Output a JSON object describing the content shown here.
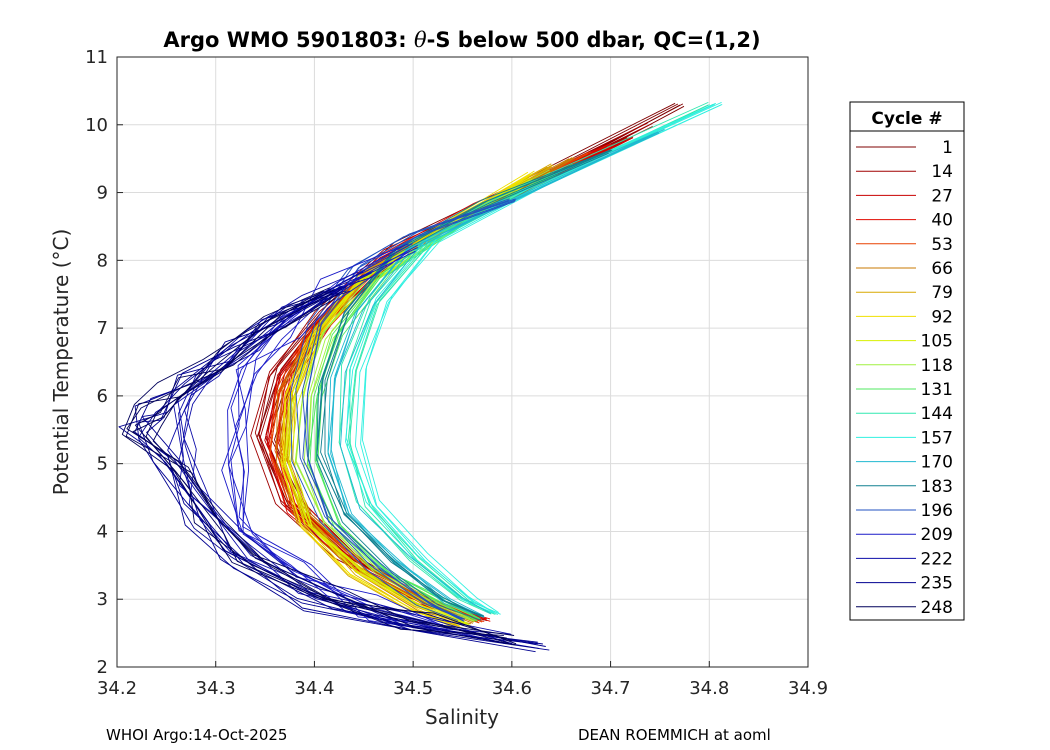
{
  "chart_data": {
    "type": "line",
    "title_prefix": "Argo WMO 5901803: ",
    "title_symbol": "θ",
    "title_suffix": "-S below 500 dbar,  QC=(1,2)",
    "xlabel": "Salinity",
    "ylabel": "Potential Temperature (°C)",
    "xlim": [
      34.2,
      34.9
    ],
    "ylim": [
      2,
      11
    ],
    "xticks": [
      "34.2",
      "34.3",
      "34.4",
      "34.5",
      "34.6",
      "34.7",
      "34.8",
      "34.9"
    ],
    "yticks": [
      "2",
      "3",
      "4",
      "5",
      "6",
      "7",
      "8",
      "9",
      "10",
      "11"
    ],
    "grid": true,
    "legend": {
      "title": "Cycle #",
      "placement": "outside-right",
      "entries": [
        {
          "label": "1",
          "color": "#7f0000"
        },
        {
          "label": "14",
          "color": "#a00000"
        },
        {
          "label": "27",
          "color": "#c80000"
        },
        {
          "label": "40",
          "color": "#e00a00"
        },
        {
          "label": "53",
          "color": "#e84000"
        },
        {
          "label": "66",
          "color": "#c87800"
        },
        {
          "label": "79",
          "color": "#d8a800"
        },
        {
          "label": "92",
          "color": "#f0e000"
        },
        {
          "label": "105",
          "color": "#d8f000"
        },
        {
          "label": "118",
          "color": "#a0f040"
        },
        {
          "label": "131",
          "color": "#50e860"
        },
        {
          "label": "144",
          "color": "#30e8b0"
        },
        {
          "label": "157",
          "color": "#30f0e0"
        },
        {
          "label": "170",
          "color": "#20b8d0"
        },
        {
          "label": "183",
          "color": "#108090"
        },
        {
          "label": "196",
          "color": "#2050c0"
        },
        {
          "label": "209",
          "color": "#1a1ac8"
        },
        {
          "label": "222",
          "color": "#0c0ca8"
        },
        {
          "label": "235",
          "color": "#000090"
        },
        {
          "label": "248",
          "color": "#00005a"
        }
      ]
    },
    "series": [
      {
        "name": "1",
        "color": "#7f0000",
        "x": [
          34.77,
          34.6,
          34.49,
          34.42,
          34.37,
          34.35,
          34.38,
          34.44,
          34.51,
          34.57
        ],
        "y": [
          10.3,
          9.0,
          8.2,
          7.3,
          6.4,
          5.4,
          4.4,
          3.6,
          3.0,
          2.7
        ]
      },
      {
        "name": "14",
        "color": "#a00000",
        "x": [
          34.74,
          34.59,
          34.48,
          34.41,
          34.36,
          34.345,
          34.37,
          34.43,
          34.5,
          34.565
        ],
        "y": [
          10.0,
          8.9,
          8.1,
          7.2,
          6.3,
          5.4,
          4.4,
          3.6,
          3.0,
          2.68
        ]
      },
      {
        "name": "27",
        "color": "#c80000",
        "x": [
          34.72,
          34.58,
          34.47,
          34.41,
          34.37,
          34.355,
          34.38,
          34.44,
          34.51,
          34.57
        ],
        "y": [
          9.8,
          8.8,
          8.0,
          7.1,
          6.3,
          5.3,
          4.4,
          3.5,
          3.0,
          2.7
        ]
      },
      {
        "name": "40",
        "color": "#e00a00",
        "x": [
          34.7,
          34.57,
          34.47,
          34.41,
          34.37,
          34.36,
          34.38,
          34.45,
          34.52,
          34.575
        ],
        "y": [
          9.7,
          8.8,
          8.0,
          7.1,
          6.2,
          5.2,
          4.3,
          3.5,
          2.95,
          2.7
        ]
      },
      {
        "name": "53",
        "color": "#e84000",
        "x": [
          34.68,
          34.56,
          34.46,
          34.4,
          34.37,
          34.36,
          34.385,
          34.45,
          34.52,
          34.57
        ],
        "y": [
          9.6,
          8.7,
          7.9,
          7.0,
          6.1,
          5.2,
          4.3,
          3.5,
          2.95,
          2.68
        ]
      },
      {
        "name": "66",
        "color": "#c87800",
        "x": [
          34.66,
          34.55,
          34.46,
          34.4,
          34.37,
          34.365,
          34.39,
          34.45,
          34.51,
          34.56
        ],
        "y": [
          9.5,
          8.6,
          7.9,
          7.0,
          6.1,
          5.1,
          4.2,
          3.4,
          2.9,
          2.65
        ]
      },
      {
        "name": "79",
        "color": "#d8a800",
        "x": [
          34.64,
          34.54,
          34.45,
          34.4,
          34.375,
          34.37,
          34.39,
          34.44,
          34.5,
          34.55
        ],
        "y": [
          9.4,
          8.6,
          7.8,
          6.9,
          6.0,
          5.1,
          4.2,
          3.4,
          2.9,
          2.62
        ]
      },
      {
        "name": "92",
        "color": "#f0e000",
        "x": [
          34.62,
          34.53,
          34.45,
          34.4,
          34.375,
          34.37,
          34.39,
          34.44,
          34.5,
          34.545
        ],
        "y": [
          9.3,
          8.5,
          7.8,
          6.9,
          6.0,
          5.0,
          4.1,
          3.4,
          2.9,
          2.6
        ]
      },
      {
        "name": "105",
        "color": "#d8f000",
        "x": [
          34.62,
          34.53,
          34.45,
          34.4,
          34.38,
          34.375,
          34.395,
          34.45,
          34.51,
          34.555
        ],
        "y": [
          9.2,
          8.5,
          7.7,
          6.9,
          5.9,
          5.0,
          4.1,
          3.4,
          2.9,
          2.65
        ]
      },
      {
        "name": "118",
        "color": "#a0f040",
        "x": [
          34.64,
          34.54,
          34.46,
          34.41,
          34.39,
          34.385,
          34.41,
          34.46,
          34.52,
          34.56
        ],
        "y": [
          9.3,
          8.5,
          7.8,
          6.9,
          6.0,
          5.0,
          4.1,
          3.4,
          2.95,
          2.7
        ]
      },
      {
        "name": "131",
        "color": "#50e860",
        "x": [
          34.66,
          34.55,
          34.47,
          34.42,
          34.4,
          34.395,
          34.42,
          34.47,
          34.53,
          34.565
        ],
        "y": [
          9.4,
          8.6,
          7.8,
          6.9,
          6.0,
          5.0,
          4.1,
          3.4,
          2.95,
          2.7
        ]
      },
      {
        "name": "144",
        "color": "#30e8b0",
        "x": [
          34.8,
          34.62,
          34.51,
          34.46,
          34.435,
          34.43,
          34.45,
          34.5,
          34.55,
          34.58
        ],
        "y": [
          10.3,
          9.1,
          8.3,
          7.4,
          6.4,
          5.3,
          4.4,
          3.6,
          3.0,
          2.8
        ]
      },
      {
        "name": "157",
        "color": "#30f0e0",
        "x": [
          34.81,
          34.63,
          34.52,
          34.47,
          34.445,
          34.44,
          34.46,
          34.51,
          34.56,
          34.585
        ],
        "y": [
          10.3,
          9.1,
          8.3,
          7.4,
          6.4,
          5.3,
          4.4,
          3.6,
          3.0,
          2.78
        ]
      },
      {
        "name": "170",
        "color": "#20b8d0",
        "x": [
          34.75,
          34.6,
          34.5,
          34.45,
          34.425,
          34.42,
          34.44,
          34.49,
          34.54,
          34.575
        ],
        "y": [
          9.9,
          8.9,
          8.2,
          7.3,
          6.3,
          5.2,
          4.3,
          3.6,
          3.0,
          2.75
        ]
      },
      {
        "name": "183",
        "color": "#108090",
        "x": [
          34.7,
          34.57,
          34.48,
          34.43,
          34.41,
          34.405,
          34.43,
          34.48,
          34.53,
          34.57
        ],
        "y": [
          9.6,
          8.8,
          8.1,
          7.2,
          6.2,
          5.1,
          4.2,
          3.5,
          2.95,
          2.72
        ]
      },
      {
        "name": "196",
        "color": "#2050c0",
        "x": [
          34.6,
          34.5,
          34.44,
          34.4,
          34.385,
          34.385,
          34.41,
          34.46,
          34.51,
          34.55
        ],
        "y": [
          8.9,
          8.4,
          7.9,
          7.1,
          6.1,
          5.1,
          4.2,
          3.5,
          2.95,
          2.7
        ]
      },
      {
        "name": "209",
        "color": "#1a1ac8",
        "x": [
          34.5,
          34.42,
          34.37,
          34.33,
          34.32,
          34.32,
          34.33,
          34.38,
          34.45,
          34.53
        ],
        "y": [
          8.2,
          7.6,
          7.0,
          6.4,
          5.7,
          4.9,
          4.1,
          3.4,
          2.9,
          2.55
        ]
      },
      {
        "name": "222",
        "color": "#0c0ca8",
        "x": [
          34.45,
          34.38,
          34.33,
          34.29,
          34.27,
          34.265,
          34.28,
          34.32,
          34.39,
          34.48,
          34.6
        ],
        "y": [
          7.8,
          7.3,
          6.8,
          6.3,
          5.8,
          5.2,
          4.5,
          3.8,
          3.2,
          2.7,
          2.4
        ]
      },
      {
        "name": "235",
        "color": "#000090",
        "x": [
          34.43,
          34.36,
          34.31,
          34.27,
          34.24,
          34.215,
          34.25,
          34.28,
          34.32,
          34.4,
          34.5,
          34.63
        ],
        "y": [
          7.6,
          7.1,
          6.6,
          6.2,
          5.8,
          5.5,
          5.0,
          4.2,
          3.6,
          3.0,
          2.6,
          2.3
        ]
      },
      {
        "name": "248",
        "color": "#00005a",
        "x": [
          34.42,
          34.35,
          34.3,
          34.26,
          34.23,
          34.22,
          34.26,
          34.29,
          34.33,
          34.41,
          34.5,
          34.6
        ],
        "y": [
          7.5,
          7.0,
          6.5,
          6.1,
          5.7,
          5.4,
          4.8,
          4.1,
          3.5,
          3.0,
          2.65,
          2.4
        ]
      }
    ]
  },
  "footer": {
    "left": "WHOI Argo:14-Oct-2025",
    "right": "DEAN ROEMMICH at aoml"
  }
}
